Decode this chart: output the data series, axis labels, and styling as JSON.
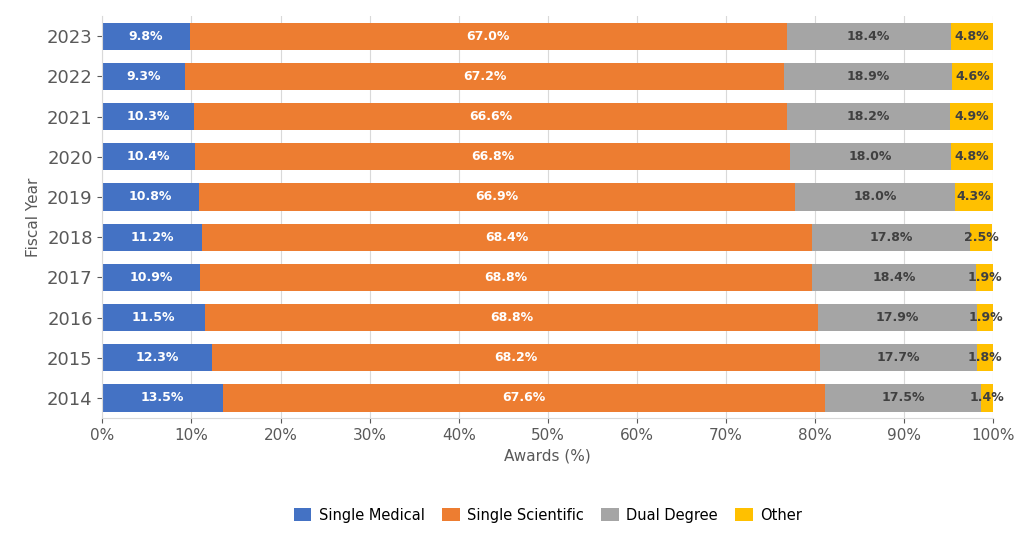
{
  "years": [
    2014,
    2015,
    2016,
    2017,
    2018,
    2019,
    2020,
    2021,
    2022,
    2023
  ],
  "single_medical": [
    13.5,
    12.3,
    11.5,
    10.9,
    11.2,
    10.8,
    10.4,
    10.3,
    9.3,
    9.8
  ],
  "single_scientific": [
    67.6,
    68.2,
    68.8,
    68.8,
    68.4,
    66.9,
    66.8,
    66.6,
    67.2,
    67.0
  ],
  "dual_degree": [
    17.5,
    17.7,
    17.9,
    18.4,
    17.8,
    18.0,
    18.0,
    18.2,
    18.9,
    18.4
  ],
  "other": [
    1.4,
    1.8,
    1.9,
    1.9,
    2.5,
    4.3,
    4.8,
    4.9,
    4.6,
    4.8
  ],
  "colors": {
    "single_medical": "#4472C4",
    "single_scientific": "#ED7D31",
    "dual_degree": "#A5A5A5",
    "other": "#FFC000"
  },
  "xlabel": "Awards (%)",
  "ylabel": "Fiscal Year",
  "legend_labels": [
    "Single Medical",
    "Single Scientific",
    "Dual Degree",
    "Other"
  ],
  "background_color": "#FFFFFF",
  "bar_height": 0.68,
  "label_fontsize": 9.0,
  "axis_label_fontsize": 11,
  "year_fontsize": 13,
  "tick_fontsize": 11,
  "legend_fontsize": 10.5
}
